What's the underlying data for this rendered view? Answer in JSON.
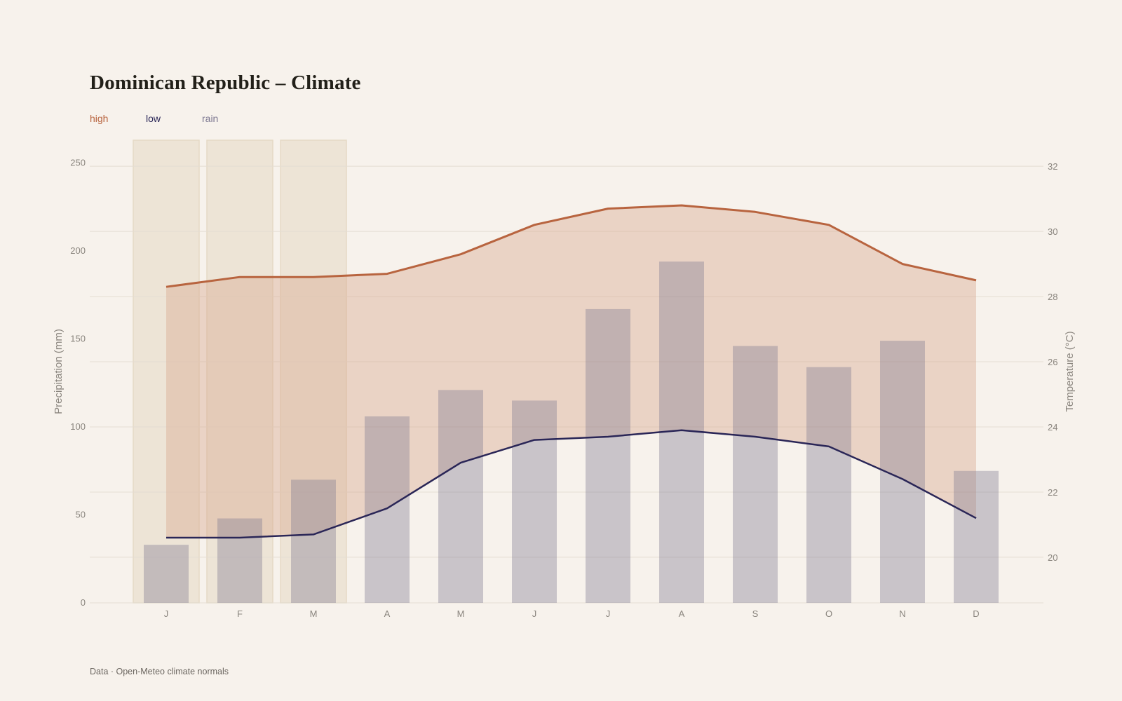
{
  "title": "Dominican Republic – Climate",
  "legend": {
    "high": "high",
    "low": "low",
    "rain": "rain"
  },
  "footer": "Data · Open-Meteo climate normals",
  "colors": {
    "background": "#f7f2ec",
    "high": "#b8643f",
    "low": "#2a2657",
    "rain": "#7d7891",
    "band_fill": "#d9a98e",
    "highlight": "#e5d9c5"
  },
  "chart_data": {
    "type": "bar",
    "categories": [
      "J",
      "F",
      "M",
      "A",
      "M",
      "J",
      "J",
      "A",
      "S",
      "O",
      "N",
      "D"
    ],
    "highlighted_months": [
      0,
      1,
      2
    ],
    "series": [
      {
        "name": "rain",
        "type": "bar",
        "axis": "left",
        "values": [
          33,
          48,
          70,
          106,
          121,
          115,
          167,
          194,
          146,
          134,
          149,
          75
        ]
      },
      {
        "name": "high",
        "type": "line",
        "axis": "right",
        "values": [
          28.3,
          28.6,
          28.6,
          28.7,
          29.3,
          30.2,
          30.7,
          30.8,
          30.6,
          30.2,
          29.0,
          28.5
        ]
      },
      {
        "name": "low",
        "type": "line",
        "axis": "right",
        "values": [
          20.6,
          20.6,
          20.7,
          21.5,
          22.9,
          23.6,
          23.7,
          23.9,
          23.7,
          23.4,
          22.4,
          21.2
        ]
      }
    ],
    "left_axis": {
      "label": "Precipitation (mm)",
      "ticks": [
        0,
        50,
        100,
        150,
        200,
        250
      ],
      "ylim": [
        0,
        263
      ]
    },
    "right_axis": {
      "label": "Temperature (°C)",
      "ticks": [
        20,
        22,
        24,
        26,
        28,
        30,
        32
      ],
      "ylim": [
        18.6,
        32.8
      ]
    },
    "grid": true
  }
}
